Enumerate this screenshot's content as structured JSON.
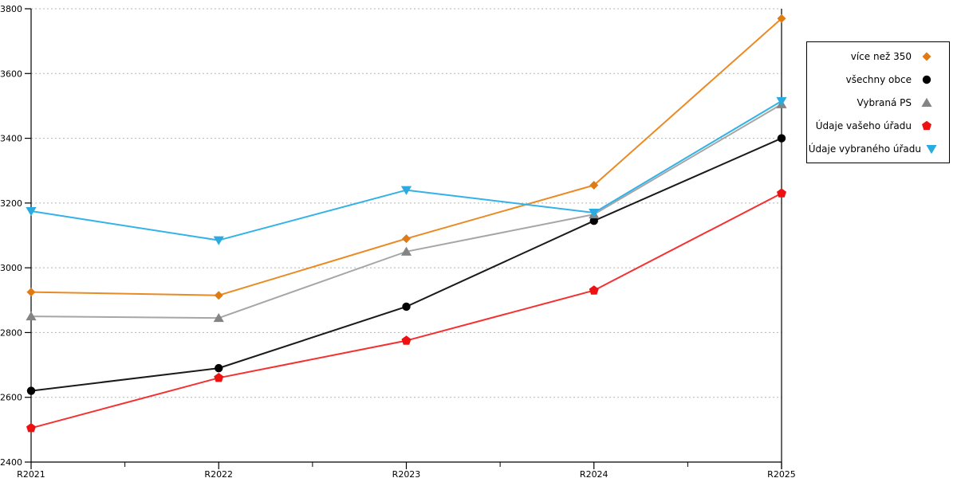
{
  "chart_data": {
    "type": "line",
    "title": "",
    "xlabel": "",
    "ylabel": "",
    "x_categories": [
      "R2021",
      "R2022",
      "R2023",
      "R2024",
      "R2025"
    ],
    "y_ticks": [
      2400,
      2600,
      2800,
      3000,
      3200,
      3400,
      3600,
      3800
    ],
    "ylim": [
      2400,
      3800
    ],
    "grid": "horizontal-dotted",
    "grid_color": "#b3b3b3",
    "axis_color": "#000000",
    "background_color": "#ffffff",
    "legend_position": "outside-right",
    "series": [
      {
        "name": "více než 350",
        "marker": "diamond",
        "color": "#e07b13",
        "line_color": "#ea8a24",
        "values": [
          2925,
          2915,
          3090,
          3255,
          3770
        ]
      },
      {
        "name": "všechny obce",
        "marker": "circle",
        "color": "#000000",
        "line_color": "#1a1a1a",
        "values": [
          2620,
          2690,
          2880,
          3145,
          3400
        ]
      },
      {
        "name": "Vybraná PS",
        "marker": "triangle-up",
        "color": "#848484",
        "line_color": "#a6a6a6",
        "values": [
          2850,
          2845,
          3050,
          3165,
          3505
        ]
      },
      {
        "name": "Údaje vašeho úřadu",
        "marker": "pentagon",
        "color": "#ee1111",
        "line_color": "#f53030",
        "values": [
          2505,
          2660,
          2775,
          2930,
          3230
        ]
      },
      {
        "name": "Údaje vybraného úřadu",
        "marker": "triangle-down",
        "color": "#29abe2",
        "line_color": "#33b2e8",
        "values": [
          3175,
          3085,
          3240,
          3170,
          3515
        ]
      }
    ]
  }
}
